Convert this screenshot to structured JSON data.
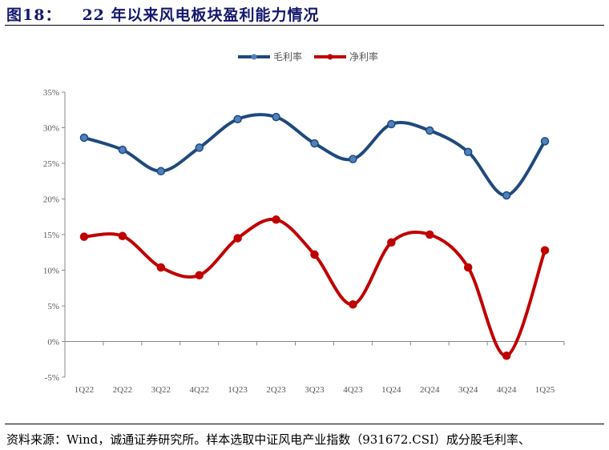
{
  "header": {
    "figure_no": "图18：",
    "title": "22 年以来风电板块盈利能力情况"
  },
  "footer": {
    "source": "资料来源：Wind，诚通证券研究所。样本选取中证风电产业指数（931672.CSI）成分股毛利率、"
  },
  "chart_data": {
    "type": "line",
    "title": "22 年以来风电板块盈利能力情况",
    "categories": [
      "1Q22",
      "2Q22",
      "3Q22",
      "4Q22",
      "1Q23",
      "2Q23",
      "3Q23",
      "4Q23",
      "1Q24",
      "2Q24",
      "3Q24",
      "4Q24",
      "1Q25"
    ],
    "series": [
      {
        "name": "毛利率",
        "color": "#1f497d",
        "values": [
          28.6,
          26.9,
          23.9,
          27.2,
          31.2,
          31.5,
          27.8,
          25.6,
          30.5,
          29.6,
          26.6,
          20.5,
          28.1
        ]
      },
      {
        "name": "净利率",
        "color": "#c00000",
        "values": [
          14.7,
          14.8,
          10.4,
          9.3,
          14.5,
          17.1,
          12.2,
          5.2,
          13.9,
          15.0,
          10.4,
          -2.0,
          12.8
        ]
      }
    ],
    "ylim": [
      -5,
      35
    ],
    "yticks": [
      "35%",
      "30%",
      "25%",
      "20%",
      "15%",
      "10%",
      "5%",
      "0%",
      "-5%"
    ],
    "ytick_values": [
      35,
      30,
      25,
      20,
      15,
      10,
      5,
      0,
      -5
    ],
    "legend": "top-center",
    "grid": false
  }
}
